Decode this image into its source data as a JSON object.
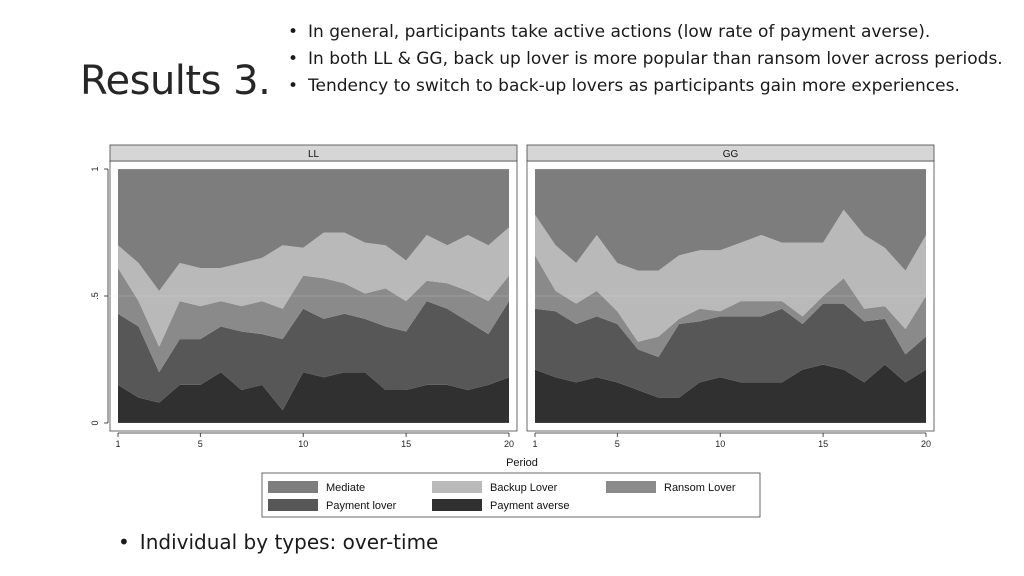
{
  "slide": {
    "title": "Results 3.",
    "bullets": [
      "In general, participants take active actions (low rate of payment averse).",
      "In both LL & GG, back up lover is more popular than ransom lover across periods.",
      "Tendency to switch to back-up lovers as participants gain more experiences."
    ],
    "bottom_bullet": "Individual by types: over-time"
  },
  "chart_data": {
    "type": "area",
    "stacked": true,
    "xlabel": "Period",
    "ylabel": "",
    "xlim": [
      1,
      20
    ],
    "ylim": [
      0,
      1
    ],
    "x": [
      1,
      2,
      3,
      4,
      5,
      6,
      7,
      8,
      9,
      10,
      11,
      12,
      13,
      14,
      15,
      16,
      17,
      18,
      19,
      20
    ],
    "x_ticks": [
      1,
      5,
      10,
      15,
      20
    ],
    "x_tick_labels": [
      "1",
      "5",
      "10",
      "15",
      "20"
    ],
    "y_ticks": [
      0,
      0.5,
      1
    ],
    "y_tick_labels": [
      "0",
      ".5",
      "1"
    ],
    "stack_order": [
      "Payment averse",
      "Payment lover",
      "Ransom Lover",
      "Backup Lover",
      "Mediate"
    ],
    "colors": {
      "Payment averse": "#303030",
      "Payment lover": "#575757",
      "Ransom Lover": "#8a8a8a",
      "Backup Lover": "#b9b9b9",
      "Mediate": "#7d7d7d"
    },
    "legend": {
      "placement": "bottom",
      "entries": [
        "Mediate",
        "Backup Lover",
        "Ransom Lover",
        "Payment lover",
        "Payment averse"
      ]
    },
    "panels": [
      {
        "name": "LL",
        "series": [
          {
            "name": "Payment averse",
            "values": [
              0.15,
              0.1,
              0.08,
              0.15,
              0.15,
              0.2,
              0.13,
              0.15,
              0.05,
              0.2,
              0.18,
              0.2,
              0.2,
              0.13,
              0.13,
              0.15,
              0.15,
              0.13,
              0.15,
              0.18
            ]
          },
          {
            "name": "Payment lover",
            "values": [
              0.28,
              0.28,
              0.12,
              0.18,
              0.18,
              0.18,
              0.23,
              0.2,
              0.28,
              0.25,
              0.23,
              0.23,
              0.21,
              0.25,
              0.23,
              0.33,
              0.3,
              0.27,
              0.2,
              0.3
            ]
          },
          {
            "name": "Ransom Lover",
            "values": [
              0.18,
              0.1,
              0.1,
              0.15,
              0.13,
              0.1,
              0.1,
              0.13,
              0.12,
              0.13,
              0.16,
              0.12,
              0.1,
              0.15,
              0.12,
              0.08,
              0.1,
              0.12,
              0.13,
              0.1
            ]
          },
          {
            "name": "Backup Lover",
            "values": [
              0.09,
              0.15,
              0.22,
              0.15,
              0.15,
              0.13,
              0.17,
              0.17,
              0.25,
              0.11,
              0.18,
              0.2,
              0.2,
              0.17,
              0.16,
              0.18,
              0.15,
              0.22,
              0.22,
              0.19
            ]
          },
          {
            "name": "Mediate",
            "values": [
              0.3,
              0.37,
              0.48,
              0.37,
              0.39,
              0.39,
              0.37,
              0.35,
              0.3,
              0.31,
              0.25,
              0.25,
              0.29,
              0.3,
              0.36,
              0.26,
              0.3,
              0.26,
              0.3,
              0.23
            ]
          }
        ]
      },
      {
        "name": "GG",
        "series": [
          {
            "name": "Payment averse",
            "values": [
              0.21,
              0.18,
              0.16,
              0.18,
              0.16,
              0.13,
              0.1,
              0.1,
              0.16,
              0.18,
              0.16,
              0.16,
              0.16,
              0.21,
              0.23,
              0.21,
              0.16,
              0.23,
              0.16,
              0.21
            ]
          },
          {
            "name": "Payment lover",
            "values": [
              0.24,
              0.26,
              0.23,
              0.24,
              0.23,
              0.16,
              0.16,
              0.29,
              0.24,
              0.24,
              0.26,
              0.26,
              0.29,
              0.18,
              0.24,
              0.26,
              0.24,
              0.18,
              0.11,
              0.13
            ]
          },
          {
            "name": "Ransom Lover",
            "values": [
              0.21,
              0.08,
              0.08,
              0.1,
              0.05,
              0.03,
              0.08,
              0.02,
              0.05,
              0.02,
              0.06,
              0.06,
              0.03,
              0.03,
              0.03,
              0.1,
              0.05,
              0.05,
              0.1,
              0.16
            ]
          },
          {
            "name": "Backup Lover",
            "values": [
              0.16,
              0.18,
              0.16,
              0.22,
              0.19,
              0.28,
              0.26,
              0.25,
              0.23,
              0.24,
              0.23,
              0.26,
              0.23,
              0.29,
              0.21,
              0.27,
              0.29,
              0.23,
              0.23,
              0.24
            ]
          },
          {
            "name": "Mediate",
            "values": [
              0.18,
              0.3,
              0.37,
              0.26,
              0.37,
              0.4,
              0.4,
              0.34,
              0.32,
              0.32,
              0.29,
              0.26,
              0.29,
              0.29,
              0.29,
              0.16,
              0.26,
              0.31,
              0.4,
              0.26
            ]
          }
        ]
      }
    ]
  }
}
